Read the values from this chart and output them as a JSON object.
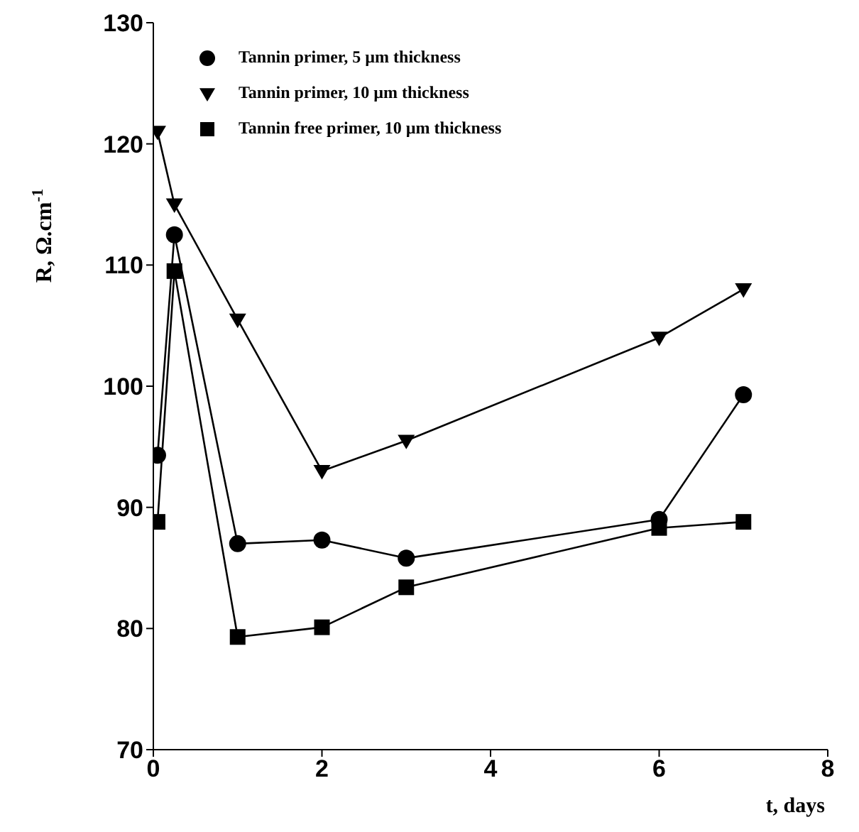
{
  "chart_data": {
    "type": "line",
    "xlabel": "t, days",
    "ylabel": "R, Ω.cm$^{-1}$",
    "x": [
      0.05,
      0.25,
      1,
      2,
      3,
      6,
      7
    ],
    "xlim": [
      0,
      8
    ],
    "xticks": [
      0,
      2,
      4,
      6,
      8
    ],
    "ylim": [
      70,
      130
    ],
    "yticks": [
      70,
      80,
      90,
      100,
      110,
      120,
      130
    ],
    "grid": false,
    "legend": "top left",
    "line_style": "solid",
    "series": [
      {
        "name": "Tannin primer, 5 µm thickness",
        "color": "#000000",
        "marker": "circle",
        "values": [
          94.3,
          112.5,
          87,
          87.3,
          85.8,
          89,
          99.3
        ]
      },
      {
        "name": "Tannin primer, 10 µm thickness",
        "color": "#000000",
        "marker": "triangle",
        "values": [
          121,
          115,
          105.5,
          93,
          95.5,
          104,
          108
        ]
      },
      {
        "name": "Tannin free primer, 10 µm thickness",
        "color": "#000000",
        "marker": "square",
        "values": [
          88.8,
          109.5,
          79.3,
          80.1,
          83.4,
          88.3,
          88.8
        ]
      }
    ]
  }
}
